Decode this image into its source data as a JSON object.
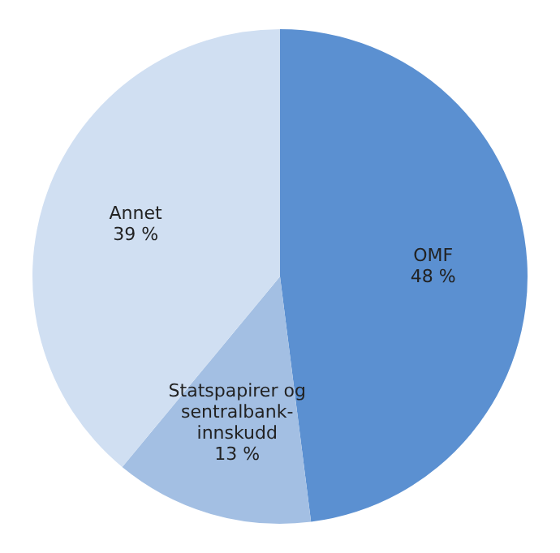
{
  "chart_data": {
    "type": "pie",
    "categories": [
      "OMF",
      "Statspapirer og sentralbank-innskudd",
      "Annet"
    ],
    "values": [
      48,
      13,
      39
    ],
    "value_labels": [
      "48 %",
      "13 %",
      "39 %"
    ],
    "colors": [
      "#5b90d1",
      "#a3bfe3",
      "#d0dff2"
    ]
  }
}
